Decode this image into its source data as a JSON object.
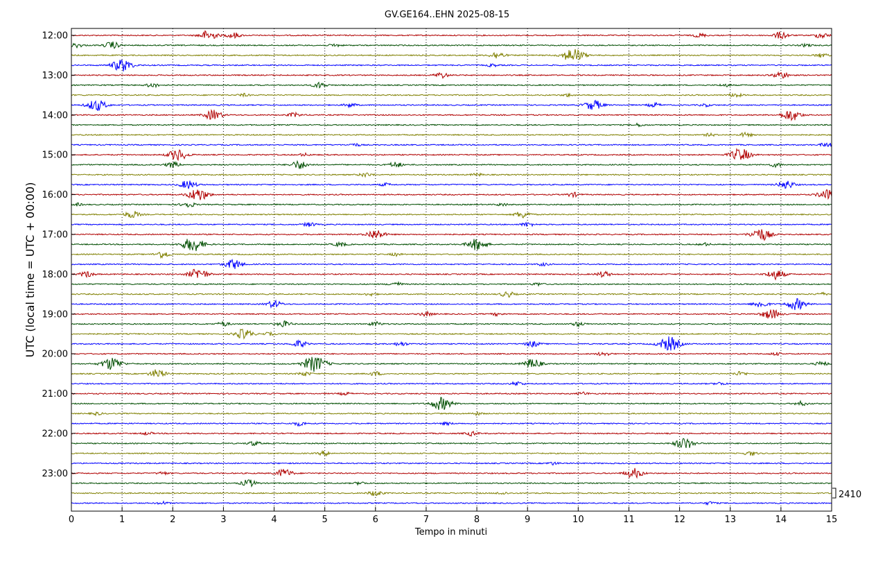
{
  "chart_data": {
    "type": "line",
    "title": "GV.GE164..EHN 2025-08-15",
    "xlabel": "Tempo in minuti",
    "ylabel": "UTC (local time = UTC + 00:00)",
    "xlim": [
      0,
      15
    ],
    "x_ticks": [
      "0",
      "1",
      "2",
      "3",
      "4",
      "5",
      "6",
      "7",
      "8",
      "9",
      "10",
      "11",
      "12",
      "13",
      "14",
      "15"
    ],
    "y_ticks": [
      "12:00",
      "13:00",
      "14:00",
      "15:00",
      "16:00",
      "17:00",
      "18:00",
      "19:00",
      "20:00",
      "21:00",
      "22:00",
      "23:00"
    ],
    "grid": "vertical dotted",
    "scale_label": "2410",
    "series_colors": [
      "#b00000",
      "#004d00",
      "#7f7f00",
      "#0000ff"
    ],
    "rows": [
      {
        "bursts": [
          [
            2.7,
            7
          ],
          [
            3.2,
            4
          ],
          [
            14.0,
            5
          ],
          [
            12.4,
            3
          ],
          [
            14.8,
            4
          ]
        ]
      },
      {
        "bursts": [
          [
            0.8,
            5
          ],
          [
            0.1,
            3
          ],
          [
            5.2,
            2
          ],
          [
            14.5,
            2
          ]
        ]
      },
      {
        "bursts": [
          [
            8.4,
            5
          ],
          [
            9.9,
            10
          ],
          [
            14.8,
            3
          ]
        ]
      },
      {
        "bursts": [
          [
            1.0,
            9
          ],
          [
            8.3,
            2
          ]
        ]
      },
      {
        "bursts": [
          [
            7.3,
            4
          ],
          [
            14.0,
            5
          ]
        ]
      },
      {
        "bursts": [
          [
            1.6,
            3
          ],
          [
            4.9,
            4
          ],
          [
            12.9,
            2
          ]
        ]
      },
      {
        "bursts": [
          [
            3.4,
            2
          ],
          [
            9.8,
            2
          ],
          [
            13.1,
            3
          ]
        ]
      },
      {
        "bursts": [
          [
            0.5,
            8
          ],
          [
            5.5,
            3
          ],
          [
            10.3,
            7
          ],
          [
            11.5,
            3
          ],
          [
            12.5,
            2
          ]
        ]
      },
      {
        "bursts": [
          [
            2.8,
            7
          ],
          [
            4.4,
            3
          ],
          [
            14.2,
            8
          ]
        ]
      },
      {
        "bursts": [
          [
            11.2,
            2
          ]
        ]
      },
      {
        "bursts": [
          [
            13.3,
            3
          ],
          [
            12.6,
            2
          ]
        ]
      },
      {
        "bursts": [
          [
            5.6,
            2
          ],
          [
            14.9,
            3
          ]
        ]
      },
      {
        "bursts": [
          [
            2.1,
            8
          ],
          [
            13.2,
            9
          ],
          [
            4.6,
            2
          ]
        ]
      },
      {
        "bursts": [
          [
            2.0,
            4
          ],
          [
            4.5,
            6
          ],
          [
            6.4,
            4
          ],
          [
            13.9,
            3
          ]
        ]
      },
      {
        "bursts": [
          [
            5.8,
            3
          ],
          [
            8.0,
            2
          ]
        ]
      },
      {
        "bursts": [
          [
            2.3,
            6
          ],
          [
            6.2,
            2
          ],
          [
            14.1,
            6
          ]
        ]
      },
      {
        "bursts": [
          [
            2.5,
            9
          ],
          [
            9.9,
            3
          ],
          [
            14.9,
            7
          ]
        ]
      },
      {
        "bursts": [
          [
            2.3,
            4
          ],
          [
            0.1,
            2
          ],
          [
            8.5,
            2
          ]
        ]
      },
      {
        "bursts": [
          [
            1.2,
            5
          ],
          [
            8.9,
            5
          ]
        ]
      },
      {
        "bursts": [
          [
            4.7,
            3
          ],
          [
            9.0,
            3
          ]
        ]
      },
      {
        "bursts": [
          [
            6.0,
            7
          ],
          [
            13.6,
            9
          ]
        ]
      },
      {
        "bursts": [
          [
            2.4,
            10
          ],
          [
            8.0,
            8
          ],
          [
            5.3,
            3
          ],
          [
            12.5,
            2
          ]
        ]
      },
      {
        "bursts": [
          [
            1.8,
            5
          ],
          [
            6.4,
            2
          ]
        ]
      },
      {
        "bursts": [
          [
            3.2,
            7
          ],
          [
            9.3,
            2
          ]
        ]
      },
      {
        "bursts": [
          [
            0.3,
            4
          ],
          [
            2.5,
            8
          ],
          [
            10.5,
            4
          ],
          [
            13.9,
            7
          ]
        ]
      },
      {
        "bursts": [
          [
            6.4,
            3
          ],
          [
            9.2,
            2
          ]
        ]
      },
      {
        "bursts": [
          [
            5.9,
            2
          ],
          [
            8.6,
            4
          ],
          [
            14.8,
            2
          ]
        ]
      },
      {
        "bursts": [
          [
            4.0,
            5
          ],
          [
            13.6,
            5
          ],
          [
            14.3,
            8
          ]
        ]
      },
      {
        "bursts": [
          [
            7.0,
            3
          ],
          [
            13.8,
            7
          ],
          [
            8.4,
            2
          ]
        ]
      },
      {
        "bursts": [
          [
            4.2,
            4
          ],
          [
            3.0,
            3
          ],
          [
            6.0,
            3
          ],
          [
            10.0,
            3
          ]
        ]
      },
      {
        "bursts": [
          [
            3.4,
            7
          ],
          [
            3.9,
            2
          ]
        ]
      },
      {
        "bursts": [
          [
            4.5,
            5
          ],
          [
            6.5,
            3
          ],
          [
            11.8,
            10
          ],
          [
            9.1,
            4
          ]
        ]
      },
      {
        "bursts": [
          [
            10.5,
            3
          ],
          [
            13.9,
            2
          ]
        ]
      },
      {
        "bursts": [
          [
            0.8,
            9
          ],
          [
            4.8,
            11
          ],
          [
            9.1,
            7
          ],
          [
            14.8,
            3
          ]
        ]
      },
      {
        "bursts": [
          [
            1.7,
            6
          ],
          [
            4.6,
            3
          ],
          [
            6.0,
            3
          ],
          [
            13.2,
            3
          ]
        ]
      },
      {
        "bursts": [
          [
            8.8,
            3
          ],
          [
            12.8,
            2
          ]
        ]
      },
      {
        "bursts": [
          [
            5.4,
            2
          ],
          [
            10.1,
            2
          ]
        ]
      },
      {
        "bursts": [
          [
            7.3,
            9
          ],
          [
            14.4,
            3
          ]
        ]
      },
      {
        "bursts": [
          [
            0.5,
            2
          ],
          [
            8.0,
            2
          ]
        ]
      },
      {
        "bursts": [
          [
            4.5,
            3
          ],
          [
            7.4,
            2
          ]
        ]
      },
      {
        "bursts": [
          [
            1.5,
            2
          ],
          [
            7.9,
            3
          ]
        ]
      },
      {
        "bursts": [
          [
            3.6,
            3
          ],
          [
            12.1,
            8
          ]
        ]
      },
      {
        "bursts": [
          [
            5.0,
            3
          ],
          [
            13.4,
            3
          ]
        ]
      },
      {
        "bursts": [
          [
            9.5,
            2
          ]
        ]
      },
      {
        "bursts": [
          [
            4.2,
            6
          ],
          [
            11.1,
            7
          ],
          [
            1.8,
            2
          ]
        ]
      },
      {
        "bursts": [
          [
            3.5,
            5
          ],
          [
            5.7,
            2
          ]
        ]
      },
      {
        "bursts": [
          [
            6.0,
            4
          ],
          [
            8.5,
            2
          ]
        ]
      },
      {
        "bursts": [
          [
            1.8,
            2
          ],
          [
            12.6,
            2
          ]
        ]
      }
    ]
  }
}
